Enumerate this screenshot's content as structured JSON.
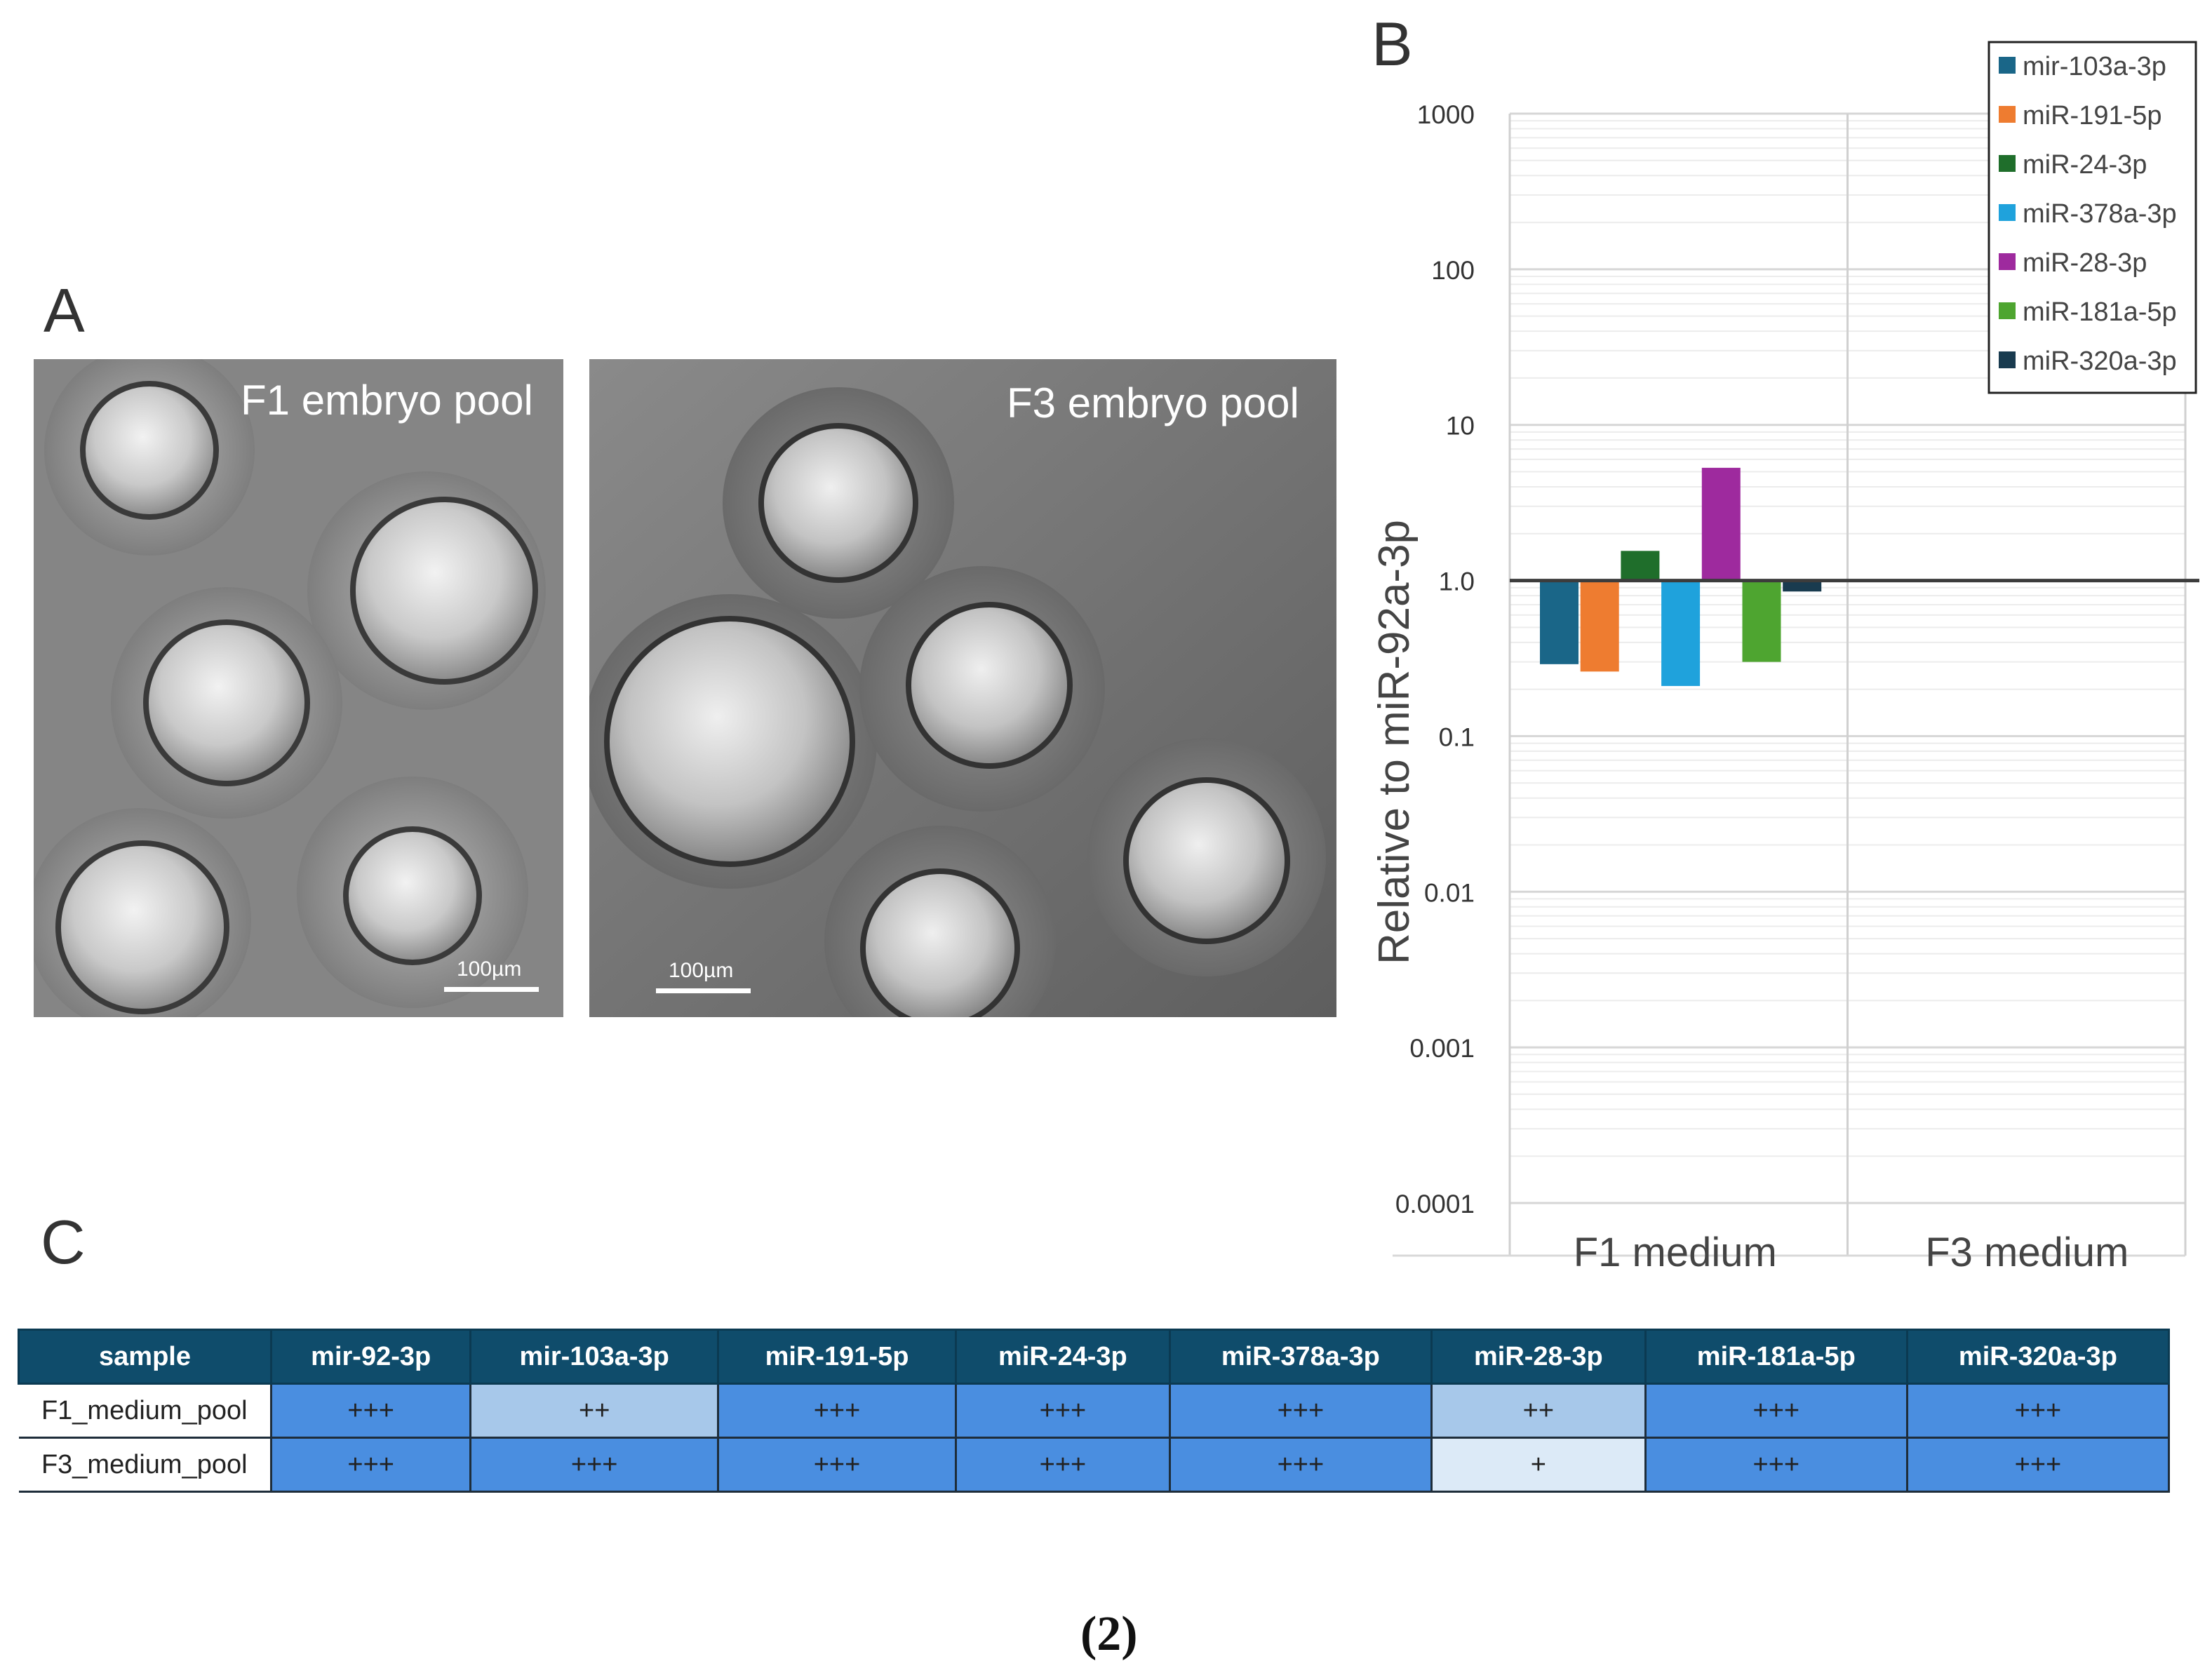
{
  "panels": {
    "a_letter": "A",
    "b_letter": "B",
    "c_letter": "C"
  },
  "micrographs": {
    "f1_label": "F1 embryo pool",
    "f3_label": "F3 embryo pool",
    "f1_scale": "100µm",
    "f3_scale": "100µm"
  },
  "chart_data": {
    "type": "bar",
    "scale": "log",
    "ylabel": "Relative to miR-92a-3p",
    "y_ticks": [
      "1000",
      "100",
      "10",
      "1.0",
      "0.1",
      "0.01",
      "0.001",
      "0.0001"
    ],
    "ylim": [
      0.0001,
      1000
    ],
    "baseline": 1.0,
    "categories": [
      "F1 medium",
      "F3 medium"
    ],
    "series": [
      {
        "name": "mir-103a-3p",
        "color": "#1a6688",
        "values": [
          0.29,
          null
        ]
      },
      {
        "name": "miR-191-5p",
        "color": "#ee7c30",
        "values": [
          0.26,
          null
        ]
      },
      {
        "name": "miR-24-3p",
        "color": "#1f6e2b",
        "values": [
          1.55,
          null
        ]
      },
      {
        "name": "miR-378a-3p",
        "color": "#1fa2dc",
        "values": [
          0.21,
          null
        ]
      },
      {
        "name": "miR-28-3p",
        "color": "#9e2a9e",
        "values": [
          5.3,
          null
        ]
      },
      {
        "name": "miR-181a-5p",
        "color": "#4ea530",
        "values": [
          0.3,
          null
        ]
      },
      {
        "name": "miR-320a-3p",
        "color": "#193b4f",
        "values": [
          0.85,
          null
        ]
      }
    ],
    "legend_position": "top-right"
  },
  "table": {
    "headers": [
      "sample",
      "mir-92-3p",
      "mir-103a-3p",
      "miR-191-5p",
      "miR-24-3p",
      "miR-378a-3p",
      "miR-28-3p",
      "miR-181a-5p",
      "miR-320a-3p"
    ],
    "rows": [
      {
        "label": "F1_medium_pool",
        "cells": [
          "+++",
          "++",
          "+++",
          "+++",
          "+++",
          "++",
          "+++",
          "+++"
        ]
      },
      {
        "label": "F3_medium_pool",
        "cells": [
          "+++",
          "+++",
          "+++",
          "+++",
          "+++",
          "+",
          "+++",
          "+++"
        ]
      }
    ]
  },
  "footer": "(2)"
}
